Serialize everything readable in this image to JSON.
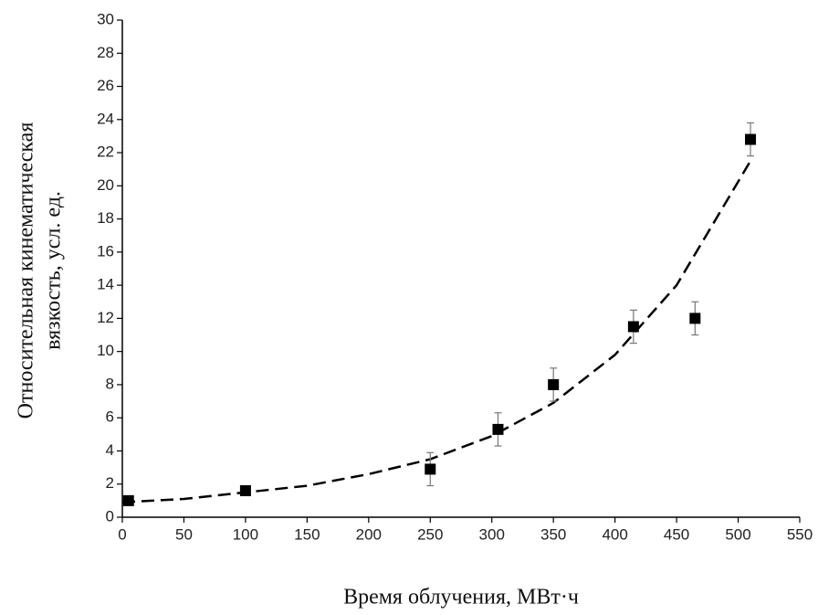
{
  "chart_data": {
    "type": "scatter",
    "xlabel": "Время облучения, МВт·ч",
    "ylabel": [
      "Относительная кинематическая",
      "вязкость, усл. ед."
    ],
    "x": [
      5,
      100,
      250,
      305,
      350,
      415,
      465,
      510
    ],
    "values": [
      1,
      1.6,
      2.9,
      5.3,
      8,
      11.5,
      12,
      22.8
    ],
    "errors": [
      0.1,
      0.1,
      1,
      1,
      1,
      1,
      1,
      1
    ],
    "color": "#000000",
    "fit": {
      "x": [
        0,
        50,
        100,
        150,
        200,
        250,
        300,
        350,
        400,
        450,
        510
      ],
      "values": [
        0.9,
        1.1,
        1.5,
        1.9,
        2.6,
        3.5,
        4.9,
        6.9,
        9.8,
        14,
        21.5
      ]
    },
    "xlim": [
      0,
      550
    ],
    "xticks": [
      0,
      50,
      100,
      150,
      200,
      250,
      300,
      350,
      400,
      450,
      500,
      550
    ],
    "ylim": [
      0,
      30
    ],
    "yticks": [
      0,
      2,
      4,
      6,
      8,
      10,
      12,
      14,
      16,
      18,
      20,
      22,
      24,
      26,
      28,
      30
    ]
  }
}
